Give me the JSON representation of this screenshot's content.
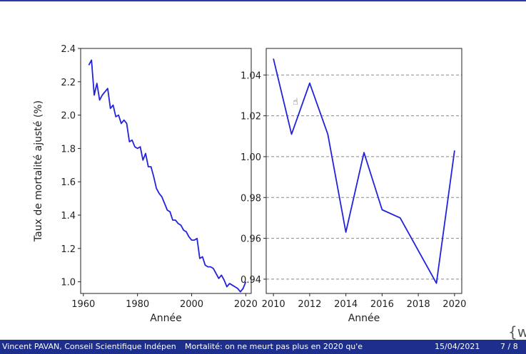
{
  "footer": {
    "left": "Vincent PAVAN, Conseil Scientifique Indépen",
    "middle": "Mortalité: on ne meurt pas plus en 2020 qu'e",
    "date": "15/04/2021",
    "page": "7 / 8"
  },
  "overlay": {
    "corner_glyph": "{w",
    "cursor_icon": "hand-cursor-icon"
  },
  "colors": {
    "line": "#2222dd",
    "footer_bg": "#1d2e8c"
  },
  "chart_data": [
    {
      "type": "line",
      "xlabel": "Année",
      "ylabel": "Taux de mortalité ajusté (%)",
      "xlim": [
        1959,
        2022
      ],
      "ylim": [
        0.93,
        2.4
      ],
      "xticks": [
        1960,
        1980,
        2000,
        2020
      ],
      "xtick_labels": [
        "1960",
        "1980",
        "2000",
        "2020"
      ],
      "yticks": [
        1.0,
        1.2,
        1.4,
        1.6,
        1.8,
        2.0,
        2.2,
        2.4
      ],
      "ytick_labels": [
        "1.0",
        "1.2",
        "1.4",
        "1.6",
        "1.8",
        "2.0",
        "2.2",
        "2.4"
      ],
      "grid": false,
      "x": [
        1962,
        1963,
        1964,
        1965,
        1966,
        1967,
        1968,
        1969,
        1970,
        1971,
        1972,
        1973,
        1974,
        1975,
        1976,
        1977,
        1978,
        1979,
        1980,
        1981,
        1982,
        1983,
        1984,
        1985,
        1986,
        1987,
        1988,
        1989,
        1990,
        1991,
        1992,
        1993,
        1994,
        1995,
        1996,
        1997,
        1998,
        1999,
        2000,
        2001,
        2002,
        2003,
        2004,
        2005,
        2006,
        2007,
        2008,
        2009,
        2010,
        2011,
        2012,
        2013,
        2014,
        2015,
        2016,
        2017,
        2018,
        2019,
        2020
      ],
      "y": [
        2.3,
        2.33,
        2.12,
        2.19,
        2.09,
        2.12,
        2.14,
        2.16,
        2.04,
        2.06,
        1.99,
        2.0,
        1.95,
        1.97,
        1.95,
        1.84,
        1.85,
        1.81,
        1.8,
        1.81,
        1.73,
        1.77,
        1.69,
        1.69,
        1.63,
        1.56,
        1.53,
        1.51,
        1.47,
        1.43,
        1.42,
        1.37,
        1.37,
        1.35,
        1.34,
        1.31,
        1.3,
        1.27,
        1.25,
        1.25,
        1.26,
        1.14,
        1.15,
        1.1,
        1.09,
        1.09,
        1.08,
        1.05,
        1.02,
        1.04,
        1.01,
        0.97,
        0.99,
        0.98,
        0.97,
        0.96,
        0.94,
        0.96,
        1.0
      ]
    },
    {
      "type": "line",
      "xlabel": "Année",
      "ylabel": "",
      "xlim": [
        2009.6,
        2020.4
      ],
      "ylim": [
        0.933,
        1.053
      ],
      "xticks": [
        2010,
        2012,
        2014,
        2016,
        2018,
        2020
      ],
      "xtick_labels": [
        "2010",
        "2012",
        "2014",
        "2016",
        "2018",
        "2020"
      ],
      "yticks": [
        0.94,
        0.96,
        0.98,
        1.0,
        1.02,
        1.04
      ],
      "ytick_labels": [
        "0.94",
        "0.96",
        "0.98",
        "1.00",
        "1.02",
        "1.04"
      ],
      "grid": true,
      "x": [
        2010,
        2011,
        2012,
        2013,
        2014,
        2015,
        2016,
        2017,
        2018,
        2019,
        2020
      ],
      "y": [
        1.048,
        1.011,
        1.036,
        1.011,
        0.963,
        1.002,
        0.974,
        0.97,
        0.954,
        0.938,
        1.003
      ]
    }
  ]
}
